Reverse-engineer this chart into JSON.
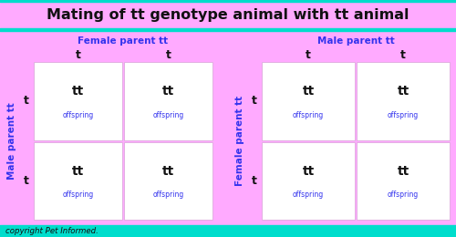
{
  "title": "Mating of tt genotype animal with tt animal",
  "title_fontsize": 11.5,
  "title_bg": "#ffaaff",
  "title_border": "#00ddcc",
  "bg_color": "#ffaaff",
  "cell_bg": "#ffffff",
  "cell_border": "#ddaadd",
  "blue_color": "#3333ee",
  "black_color": "#111111",
  "copyright": "copyright Pet Informed.",
  "left_table": {
    "parent_col_label": "Female parent tt",
    "parent_row_label": "Male parent tt",
    "col_alleles": [
      "t",
      "t"
    ],
    "row_alleles": [
      "t",
      "t"
    ],
    "cells": [
      [
        "tt",
        "tt"
      ],
      [
        "tt",
        "tt"
      ]
    ]
  },
  "right_table": {
    "parent_col_label": "Male parent tt",
    "parent_row_label": "Female parent tt",
    "col_alleles": [
      "t",
      "t"
    ],
    "row_alleles": [
      "t",
      "t"
    ],
    "cells": [
      [
        "tt",
        "tt"
      ],
      [
        "tt",
        "tt"
      ]
    ]
  }
}
